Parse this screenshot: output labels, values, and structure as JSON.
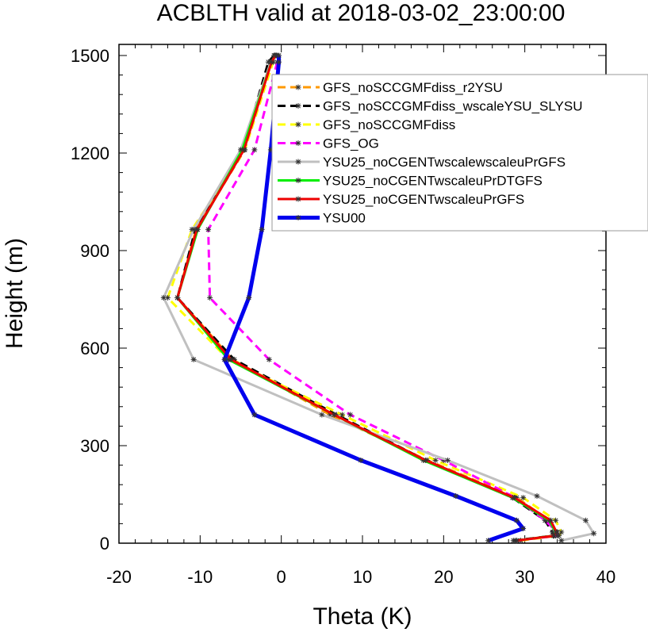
{
  "chart_data": {
    "type": "line",
    "title": "ACBLTH valid at 2018-03-02_23:00:00",
    "xlabel": "Theta (K)",
    "ylabel": "Height (m)",
    "xlim": [
      -20,
      40
    ],
    "ylim": [
      0,
      1500
    ],
    "xticks": [
      -20,
      -10,
      0,
      10,
      20,
      30,
      40
    ],
    "yticks": [
      0,
      300,
      600,
      900,
      1200,
      1500
    ],
    "grid": false,
    "legend_position": "top-right",
    "series": [
      {
        "name": "GFS_noSCCGMFdiss_r2YSU",
        "color": "#ff9900",
        "dash": "dash",
        "width": 3,
        "points": [
          [
            28.8,
            8
          ],
          [
            33.8,
            23
          ],
          [
            34.0,
            34
          ],
          [
            33.0,
            70
          ],
          [
            29.0,
            140
          ],
          [
            18.0,
            255
          ],
          [
            6.0,
            395
          ],
          [
            -6.0,
            565
          ],
          [
            -12.8,
            755
          ],
          [
            -10.5,
            965
          ],
          [
            -4.5,
            1210
          ],
          [
            -1.3,
            1480
          ],
          [
            -0.8,
            1500
          ]
        ]
      },
      {
        "name": "GFS_noSCCGMFdiss_wscaleYSU_SLYSU",
        "color": "#000000",
        "dash": "dash",
        "width": 3,
        "points": [
          [
            28.6,
            8
          ],
          [
            33.5,
            23
          ],
          [
            33.4,
            34
          ],
          [
            32.5,
            70
          ],
          [
            28.5,
            140
          ],
          [
            17.8,
            255
          ],
          [
            6.8,
            395
          ],
          [
            -5.8,
            565
          ],
          [
            -12.8,
            755
          ],
          [
            -10.6,
            965
          ],
          [
            -4.7,
            1210
          ],
          [
            -1.6,
            1480
          ],
          [
            -0.9,
            1500
          ]
        ]
      },
      {
        "name": "GFS_noSCCGMFdiss",
        "color": "#ffff00",
        "dash": "dash",
        "width": 3,
        "points": [
          [
            29.5,
            8
          ],
          [
            34.2,
            23
          ],
          [
            34.5,
            34
          ],
          [
            33.8,
            70
          ],
          [
            29.8,
            140
          ],
          [
            19.0,
            255
          ],
          [
            7.5,
            395
          ],
          [
            -6.5,
            565
          ],
          [
            -14.0,
            755
          ],
          [
            -11.0,
            965
          ],
          [
            -4.5,
            1210
          ],
          [
            -1.0,
            1480
          ],
          [
            -0.5,
            1500
          ]
        ]
      },
      {
        "name": "GFS_OG",
        "color": "#ff00ff",
        "dash": "dash",
        "width": 3,
        "points": [
          [
            29.0,
            8
          ],
          [
            34.0,
            23
          ],
          [
            34.0,
            34
          ],
          [
            32.5,
            70
          ],
          [
            28.8,
            140
          ],
          [
            20.0,
            255
          ],
          [
            8.5,
            395
          ],
          [
            -1.5,
            565
          ],
          [
            -8.8,
            755
          ],
          [
            -9.0,
            965
          ],
          [
            -3.3,
            1210
          ],
          [
            -0.5,
            1480
          ],
          [
            -0.5,
            1500
          ]
        ]
      },
      {
        "name": "YSU25_noCGENTwscalewscaleuPrGFS",
        "color": "#c0c0c0",
        "dash": "solid",
        "width": 3,
        "points": [
          [
            34.5,
            8
          ],
          [
            38.5,
            30
          ],
          [
            37.5,
            70
          ],
          [
            31.5,
            145
          ],
          [
            20.5,
            255
          ],
          [
            5.0,
            395
          ],
          [
            -10.8,
            565
          ],
          [
            -14.5,
            755
          ],
          [
            -10.8,
            965
          ],
          [
            -5.0,
            1210
          ],
          [
            -1.3,
            1480
          ],
          [
            -0.6,
            1500
          ]
        ]
      },
      {
        "name": "YSU25_noCGENTwscaleuPrDTGFS",
        "color": "#00ee00",
        "dash": "solid",
        "width": 3,
        "points": [
          [
            29.0,
            8
          ],
          [
            33.5,
            23
          ],
          [
            33.8,
            34
          ],
          [
            33.0,
            70
          ],
          [
            28.5,
            140
          ],
          [
            17.5,
            255
          ],
          [
            6.5,
            395
          ],
          [
            -6.5,
            565
          ],
          [
            -12.8,
            755
          ],
          [
            -10.3,
            965
          ],
          [
            -4.8,
            1210
          ],
          [
            -1.2,
            1480
          ],
          [
            -0.7,
            1500
          ]
        ]
      },
      {
        "name": "YSU25_noCGENTwscaleuPrGFS",
        "color": "#ee0000",
        "dash": "solid",
        "width": 3,
        "points": [
          [
            29.0,
            8
          ],
          [
            33.6,
            23
          ],
          [
            33.9,
            34
          ],
          [
            33.2,
            70
          ],
          [
            28.7,
            140
          ],
          [
            17.8,
            255
          ],
          [
            6.5,
            395
          ],
          [
            -6.2,
            565
          ],
          [
            -12.8,
            755
          ],
          [
            -10.4,
            965
          ],
          [
            -4.6,
            1210
          ],
          [
            -1.2,
            1480
          ],
          [
            -0.7,
            1500
          ]
        ]
      },
      {
        "name": "YSU00",
        "color": "#0000ee",
        "dash": "solid",
        "width": 5,
        "points": [
          [
            25.5,
            8
          ],
          [
            29.8,
            45
          ],
          [
            29.0,
            70
          ],
          [
            21.5,
            145
          ],
          [
            9.8,
            255
          ],
          [
            -3.3,
            395
          ],
          [
            -7.0,
            565
          ],
          [
            -4.0,
            755
          ],
          [
            -2.4,
            965
          ],
          [
            -1.3,
            1210
          ],
          [
            -0.3,
            1480
          ],
          [
            -0.3,
            1500
          ]
        ]
      }
    ]
  }
}
